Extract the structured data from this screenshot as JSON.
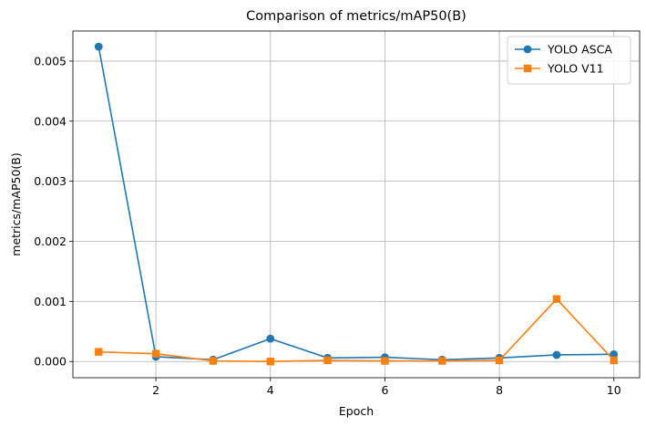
{
  "chart_data": {
    "type": "line",
    "title": "Comparison of metrics/mAP50(B)",
    "xlabel": "Epoch",
    "ylabel": "metrics/mAP50(B)",
    "x": [
      1,
      2,
      3,
      4,
      5,
      6,
      7,
      8,
      9,
      10
    ],
    "xlim": [
      0.55,
      10.45
    ],
    "ylim": [
      -0.00027,
      0.0055
    ],
    "xticks": [
      2,
      4,
      6,
      8,
      10
    ],
    "yticks": [
      0.0,
      0.001,
      0.002,
      0.003,
      0.004,
      0.005
    ],
    "xtick_labels": [
      "2",
      "4",
      "6",
      "8",
      "10"
    ],
    "ytick_labels": [
      "0.000",
      "0.001",
      "0.002",
      "0.003",
      "0.004",
      "0.005"
    ],
    "grid": true,
    "legend": "top-right",
    "series": [
      {
        "name": "YOLO ASCA",
        "marker": "circle",
        "color": "#1f77b4",
        "values": [
          0.00524,
          8e-05,
          3e-05,
          0.00038,
          6e-05,
          7e-05,
          3e-05,
          6e-05,
          0.00011,
          0.00012
        ]
      },
      {
        "name": "YOLO V11",
        "marker": "square",
        "color": "#ff7f0e",
        "values": [
          0.00016,
          0.00013,
          1e-05,
          0.0,
          2e-05,
          1e-05,
          1e-05,
          2e-05,
          0.00104,
          2e-05
        ]
      }
    ]
  }
}
